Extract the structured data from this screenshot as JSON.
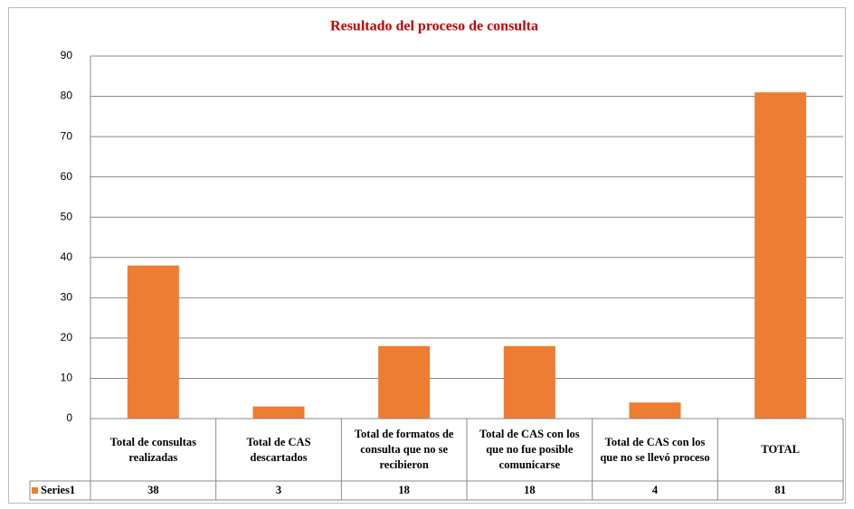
{
  "chart_data": {
    "type": "bar",
    "title": "Resultado del proceso de consulta",
    "categories": [
      "Total de consultas realizadas",
      "Total de CAS descartados",
      "Total de formatos de consulta que no se recibieron",
      "Total de CAS con los que no fue posible comunicarse",
      "Total de CAS con los que no se llevó proceso",
      "TOTAL"
    ],
    "series": [
      {
        "name": "Series1",
        "color": "#ed7d31",
        "values": [
          38,
          3,
          18,
          18,
          4,
          81
        ]
      }
    ],
    "ylim": [
      0,
      90
    ],
    "yticks": [
      0,
      10,
      20,
      30,
      40,
      50,
      60,
      70,
      80,
      90
    ],
    "grid": true,
    "data_table": true
  }
}
